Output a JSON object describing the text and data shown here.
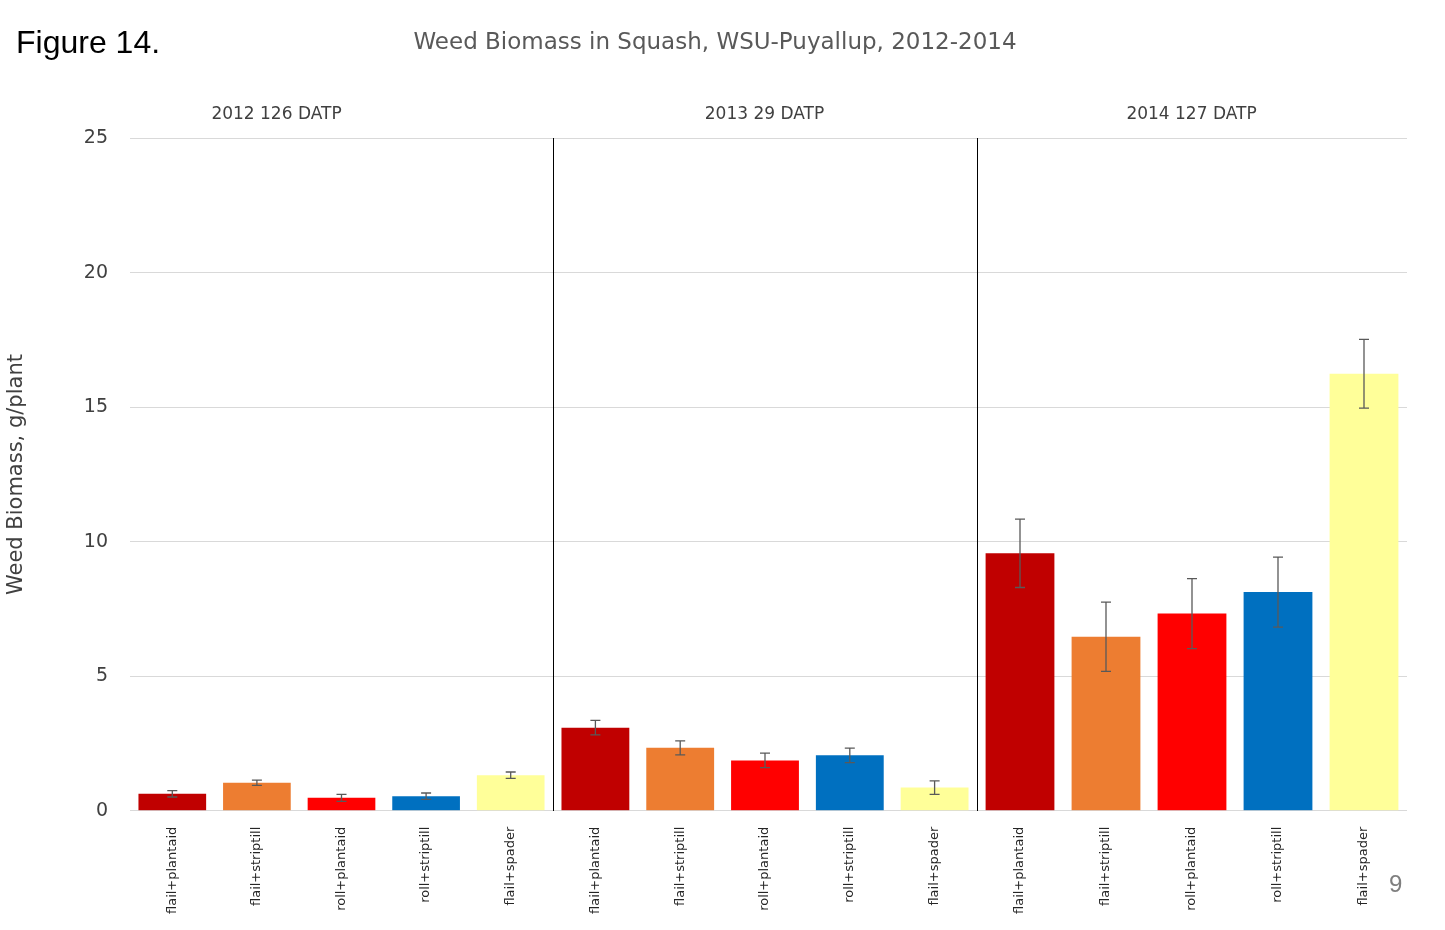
{
  "chart_data": [
    {
      "type": "bar",
      "title": "2012 126 DATP",
      "ylabel": "Weed Biomass, g/plant",
      "annotations": [
        "Figure 14.",
        "Weed Biomass in Squash, WSU-Puyallup, 2012-2014"
      ],
      "categories": [
        "flail+plantaid",
        "flail+striptill",
        "roll+plantaid",
        "roll+striptill",
        "flail+spader"
      ],
      "values": [
        0.63,
        1.04,
        0.48,
        0.54,
        1.32
      ],
      "errors": [
        0.12,
        0.1,
        0.13,
        0.12,
        0.12
      ],
      "colors": [
        "#c00000",
        "#ed7d31",
        "#ff0000",
        "#0070c0",
        "#ffff99"
      ],
      "ylim": [
        0,
        25
      ],
      "yticks": [
        0,
        5,
        10,
        15,
        20,
        25
      ],
      "grid": "y",
      "legend": false
    },
    {
      "type": "bar",
      "title": "2013 29 DATP",
      "categories": [
        "flail+plantaid",
        "flail+striptill",
        "roll+plantaid",
        "roll+striptill",
        "flail+spader"
      ],
      "values": [
        3.09,
        2.34,
        1.87,
        2.06,
        0.86
      ],
      "errors": [
        0.27,
        0.26,
        0.27,
        0.27,
        0.25
      ],
      "colors": [
        "#c00000",
        "#ed7d31",
        "#ff0000",
        "#0070c0",
        "#ffff99"
      ],
      "ylim": [
        0,
        25
      ],
      "yticks": [
        0,
        5,
        10,
        15,
        20,
        25
      ],
      "grid": "y",
      "legend": false,
      "tick_labels": "x"
    },
    {
      "type": "bar",
      "title": "2014 127 DATP",
      "annotations": [
        "9"
      ],
      "categories": [
        "flail+plantaid",
        "flail+striptill",
        "roll+plantaid",
        "roll+striptill",
        "flail+spader"
      ],
      "values": [
        9.57,
        6.47,
        7.33,
        8.13,
        16.25
      ],
      "errors": [
        1.27,
        1.29,
        1.3,
        1.3,
        1.28
      ],
      "colors": [
        "#c00000",
        "#ed7d31",
        "#ff0000",
        "#0070c0",
        "#ffff99"
      ],
      "ylim": [
        0,
        25
      ],
      "yticks": [
        0,
        5,
        10,
        15,
        20,
        25
      ],
      "grid": "y",
      "legend": false,
      "tick_labels": "x"
    }
  ]
}
